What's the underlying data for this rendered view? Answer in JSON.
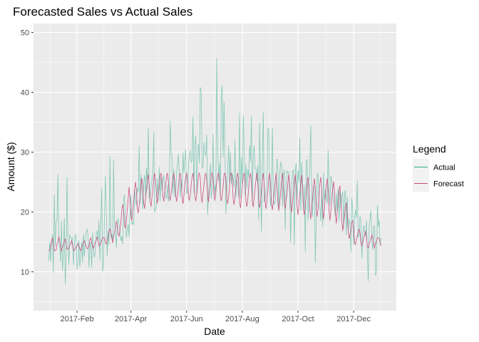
{
  "chart_data": {
    "type": "line",
    "title": "Forecasted Sales vs Actual Sales",
    "xlabel": "Date",
    "ylabel": "Amount ($)",
    "x_type": "date",
    "x_range": [
      "2017-01-01",
      "2017-12-31"
    ],
    "ylim": [
      3.5,
      51.5
    ],
    "x_ticks": [
      {
        "value": "2017-02-01",
        "label": "2017-Feb"
      },
      {
        "value": "2017-04-01",
        "label": "2017-Apr"
      },
      {
        "value": "2017-06-01",
        "label": "2017-Jun"
      },
      {
        "value": "2017-08-01",
        "label": "2017-Aug"
      },
      {
        "value": "2017-10-01",
        "label": "2017-Oct"
      },
      {
        "value": "2017-12-01",
        "label": "2017-Dec"
      }
    ],
    "y_ticks": [
      10,
      20,
      30,
      40,
      50
    ],
    "grid": true,
    "legend": {
      "title": "Legend",
      "position": "right"
    },
    "series": [
      {
        "name": "Actual",
        "color": "#2bab88",
        "x": [
          "2017-01-01",
          "2017-01-15",
          "2017-02-01",
          "2017-02-15",
          "2017-03-01",
          "2017-03-15",
          "2017-04-01",
          "2017-04-15",
          "2017-05-01",
          "2017-05-15",
          "2017-06-01",
          "2017-06-15",
          "2017-07-01",
          "2017-07-15",
          "2017-08-01",
          "2017-08-15",
          "2017-09-01",
          "2017-09-15",
          "2017-10-01",
          "2017-10-15",
          "2017-11-01",
          "2017-11-15",
          "2017-12-01",
          "2017-12-15",
          "2017-12-31"
        ],
        "values": [
          14,
          15,
          13,
          14,
          15,
          17,
          21,
          23,
          25,
          26,
          27,
          28,
          29,
          28,
          27,
          26,
          25,
          24,
          24,
          23,
          22,
          22,
          17,
          15,
          18
        ],
        "min": [
          11,
          7,
          9,
          9,
          5,
          12,
          15,
          16,
          14,
          17,
          16,
          17,
          19,
          18,
          15,
          16,
          15,
          15,
          13,
          9,
          12,
          14,
          7,
          6,
          10
        ],
        "max": [
          24,
          29,
          25,
          27,
          28,
          32,
          33,
          35,
          35,
          38,
          36,
          41,
          50,
          40,
          38,
          39,
          36,
          35,
          36,
          35,
          33,
          32,
          29,
          26,
          27
        ]
      },
      {
        "name": "Forecast",
        "color": "#c74b7b",
        "x": [
          "2017-01-01",
          "2017-01-15",
          "2017-02-01",
          "2017-02-15",
          "2017-03-01",
          "2017-03-15",
          "2017-04-01",
          "2017-04-15",
          "2017-05-01",
          "2017-05-15",
          "2017-06-01",
          "2017-06-15",
          "2017-07-01",
          "2017-07-15",
          "2017-08-01",
          "2017-08-15",
          "2017-09-01",
          "2017-09-15",
          "2017-10-01",
          "2017-10-15",
          "2017-11-01",
          "2017-11-15",
          "2017-12-01",
          "2017-12-15",
          "2017-12-31"
        ],
        "values": [
          14,
          14.5,
          14,
          14.5,
          15,
          16.5,
          21,
          23,
          24,
          24,
          24,
          24,
          24.5,
          24,
          23.5,
          23.5,
          23,
          23,
          22.5,
          22,
          22,
          21,
          16,
          15,
          15
        ],
        "min": [
          13.5,
          13.5,
          13.5,
          13.5,
          14,
          15,
          17,
          19,
          19,
          19,
          19,
          19,
          19,
          18,
          17,
          18,
          18,
          18,
          17,
          17,
          17,
          17,
          14,
          13.5,
          14
        ],
        "max": [
          17,
          17,
          15,
          16,
          16,
          19,
          26.5,
          26.5,
          26.5,
          26.5,
          26.5,
          26.5,
          26.5,
          26.5,
          26.5,
          26.5,
          26.5,
          26.5,
          26.5,
          26.5,
          26.5,
          26.5,
          19,
          17,
          16
        ]
      }
    ]
  }
}
